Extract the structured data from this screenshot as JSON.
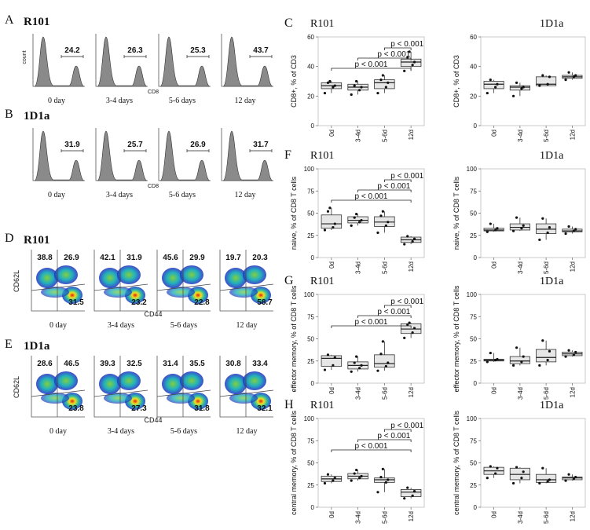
{
  "hist_panels": [
    {
      "letter": "A",
      "title": "R101",
      "y_label": "count",
      "x_label": "CD8",
      "samples": [
        {
          "label": "0 day",
          "value": 24.2
        },
        {
          "label": "3-4 days",
          "value": 26.3
        },
        {
          "label": "5-6 days",
          "value": 25.3
        },
        {
          "label": "12 day",
          "value": 43.7
        }
      ]
    },
    {
      "letter": "B",
      "title": "1D1a",
      "x_label": "CD8",
      "samples": [
        {
          "label": "0 day",
          "value": 31.9
        },
        {
          "label": "3-4 days",
          "value": 25.7
        },
        {
          "label": "5-6 days",
          "value": 26.9
        },
        {
          "label": "12 day",
          "value": 31.7
        }
      ]
    }
  ],
  "flow_panels": [
    {
      "letter": "D",
      "title": "R101",
      "y_label": "CD62L",
      "x_label": "CD44",
      "samples": [
        {
          "label": "0 day",
          "top_left": 38.8,
          "top_right": 26.9,
          "bottom_right": 31.5
        },
        {
          "label": "3-4 days",
          "top_left": 42.1,
          "top_right": 31.9,
          "bottom_right": 23.2
        },
        {
          "label": "5-6 days",
          "top_left": 45.6,
          "top_right": 29.9,
          "bottom_right": 22.8
        },
        {
          "label": "12 day",
          "top_left": 19.7,
          "top_right": 20.3,
          "bottom_right": 58.7
        }
      ]
    },
    {
      "letter": "E",
      "title": "1D1a",
      "y_label": "CD62L",
      "x_label": "CD44",
      "samples": [
        {
          "label": "0 day",
          "top_left": 28.6,
          "top_right": 46.5,
          "bottom_right": 23.8
        },
        {
          "label": "3-4 days",
          "top_left": 39.3,
          "top_right": 32.5,
          "bottom_right": 27.3
        },
        {
          "label": "5-6 days",
          "top_left": 31.4,
          "top_right": 35.5,
          "bottom_right": 31.8
        },
        {
          "label": "12 day",
          "top_left": 30.8,
          "top_right": 33.4,
          "bottom_right": 32.1
        }
      ]
    }
  ],
  "box_row_letters": [
    "C",
    "F",
    "G",
    "H"
  ],
  "chart_data": [
    {
      "type": "box",
      "title": "R101",
      "y_label": "CD8+, % of CD3",
      "categories": [
        "0d",
        "3-4d",
        "5-6d",
        "12d"
      ],
      "ylim": [
        0,
        60
      ],
      "yticks": [
        0,
        20,
        40,
        60
      ],
      "annotations": [
        "p < 0.001",
        "p < 0.001",
        "p < 0.001"
      ],
      "boxes": [
        {
          "low": 22,
          "q1": 25,
          "median": 27,
          "q3": 29,
          "high": 30,
          "points": [
            22,
            26,
            27,
            29,
            30
          ]
        },
        {
          "low": 21,
          "q1": 24,
          "median": 26,
          "q3": 28,
          "high": 30,
          "points": [
            21,
            24,
            26,
            27,
            30
          ]
        },
        {
          "low": 22,
          "q1": 25,
          "median": 29,
          "q3": 31,
          "high": 34,
          "points": [
            22,
            26,
            29,
            31,
            34
          ]
        },
        {
          "low": 37,
          "q1": 40,
          "median": 43,
          "q3": 45,
          "high": 50,
          "points": [
            37,
            41,
            43,
            46,
            50
          ]
        }
      ]
    },
    {
      "type": "box",
      "title": "1D1a",
      "y_label": "CD8+, % of CD3",
      "categories": [
        "0d",
        "3-4d",
        "5-6d",
        "12d"
      ],
      "ylim": [
        0,
        60
      ],
      "yticks": [
        0,
        20,
        40,
        60
      ],
      "boxes": [
        {
          "low": 22,
          "q1": 25,
          "median": 28,
          "q3": 30,
          "high": 31,
          "points": [
            22,
            26,
            28,
            31
          ]
        },
        {
          "low": 20,
          "q1": 24,
          "median": 26,
          "q3": 27,
          "high": 29,
          "points": [
            20,
            25,
            26,
            29
          ]
        },
        {
          "low": 27,
          "q1": 27,
          "median": 28,
          "q3": 33,
          "high": 34,
          "points": [
            27,
            28,
            33,
            34
          ]
        },
        {
          "low": 31,
          "q1": 32,
          "median": 33,
          "q3": 34,
          "high": 36,
          "points": [
            31,
            33,
            34,
            36
          ]
        }
      ]
    },
    {
      "type": "box",
      "title": "R101",
      "y_label": "naive, % of CD8 T cells",
      "categories": [
        "0d",
        "3-4d",
        "5-6d",
        "12d"
      ],
      "ylim": [
        0,
        100
      ],
      "yticks": [
        0,
        25,
        50,
        75,
        100
      ],
      "annotations": [
        "p < 0.001",
        "p < 0.001",
        "p < 0.001"
      ],
      "boxes": [
        {
          "low": 31,
          "q1": 33,
          "median": 38,
          "q3": 48,
          "high": 56,
          "points": [
            31,
            34,
            38,
            52,
            56
          ]
        },
        {
          "low": 36,
          "q1": 39,
          "median": 42,
          "q3": 46,
          "high": 49,
          "points": [
            36,
            40,
            42,
            45,
            49
          ]
        },
        {
          "low": 28,
          "q1": 35,
          "median": 40,
          "q3": 46,
          "high": 52,
          "points": [
            28,
            36,
            40,
            47,
            52
          ]
        },
        {
          "low": 15,
          "q1": 17,
          "median": 20,
          "q3": 23,
          "high": 24,
          "points": [
            15,
            18,
            21,
            24
          ]
        }
      ]
    },
    {
      "type": "box",
      "title": "1D1a",
      "y_label": "naive, % of CD8 T cells",
      "categories": [
        "0d",
        "3-4d",
        "5-6d",
        "12d"
      ],
      "ylim": [
        0,
        100
      ],
      "yticks": [
        0,
        25,
        50,
        75,
        100
      ],
      "boxes": [
        {
          "low": 29,
          "q1": 30,
          "median": 31,
          "q3": 33,
          "high": 38,
          "points": [
            29,
            31,
            33,
            38
          ]
        },
        {
          "low": 30,
          "q1": 31,
          "median": 34,
          "q3": 38,
          "high": 45,
          "points": [
            30,
            33,
            36,
            45
          ]
        },
        {
          "low": 20,
          "q1": 27,
          "median": 32,
          "q3": 38,
          "high": 44,
          "points": [
            20,
            28,
            34,
            44
          ]
        },
        {
          "low": 27,
          "q1": 29,
          "median": 30,
          "q3": 32,
          "high": 35,
          "points": [
            27,
            30,
            32,
            35
          ]
        }
      ]
    },
    {
      "type": "box",
      "title": "R101",
      "y_label": "effector memory, % of CD8 T cells",
      "categories": [
        "0d",
        "3-4d",
        "5-6d",
        "12d"
      ],
      "ylim": [
        0,
        100
      ],
      "yticks": [
        0,
        25,
        50,
        75,
        100
      ],
      "annotations": [
        "p < 0.001",
        "p < 0.001",
        "p < 0.001"
      ],
      "boxes": [
        {
          "low": 15,
          "q1": 19,
          "median": 28,
          "q3": 31,
          "high": 32,
          "points": [
            15,
            20,
            29,
            32
          ]
        },
        {
          "low": 13,
          "q1": 16,
          "median": 20,
          "q3": 24,
          "high": 30,
          "points": [
            13,
            17,
            20,
            23,
            30
          ]
        },
        {
          "low": 14,
          "q1": 18,
          "median": 22,
          "q3": 32,
          "high": 47,
          "points": [
            14,
            19,
            23,
            33,
            47
          ]
        },
        {
          "low": 51,
          "q1": 56,
          "median": 61,
          "q3": 67,
          "high": 68,
          "points": [
            51,
            57,
            62,
            66,
            68
          ]
        }
      ]
    },
    {
      "type": "box",
      "title": "1D1a",
      "y_label": "effector memory, % of CD8 T cells",
      "categories": [
        "0d",
        "3-4d",
        "5-6d",
        "12d"
      ],
      "ylim": [
        0,
        100
      ],
      "yticks": [
        0,
        25,
        50,
        75,
        100
      ],
      "boxes": [
        {
          "low": 24,
          "q1": 25,
          "median": 26,
          "q3": 27,
          "high": 34,
          "points": [
            24,
            26,
            27,
            34
          ]
        },
        {
          "low": 20,
          "q1": 22,
          "median": 25,
          "q3": 30,
          "high": 40,
          "points": [
            20,
            24,
            30,
            40
          ]
        },
        {
          "low": 20,
          "q1": 24,
          "median": 29,
          "q3": 38,
          "high": 48,
          "points": [
            20,
            26,
            36,
            48
          ]
        },
        {
          "low": 30,
          "q1": 31,
          "median": 33,
          "q3": 35,
          "high": 37,
          "points": [
            30,
            32,
            35,
            37
          ]
        }
      ]
    },
    {
      "type": "box",
      "title": "R101",
      "y_label": "central memory, % of CD8 T cells",
      "categories": [
        "0d",
        "3-4d",
        "5-6d",
        "12d"
      ],
      "ylim": [
        0,
        100
      ],
      "yticks": [
        0,
        25,
        50,
        75,
        100
      ],
      "annotations": [
        "p < 0.001",
        "p < 0.001",
        "p < 0.001"
      ],
      "boxes": [
        {
          "low": 27,
          "q1": 29,
          "median": 32,
          "q3": 35,
          "high": 37,
          "points": [
            27,
            30,
            33,
            37
          ]
        },
        {
          "low": 30,
          "q1": 32,
          "median": 35,
          "q3": 38,
          "high": 42,
          "points": [
            30,
            33,
            35,
            38,
            42
          ]
        },
        {
          "low": 17,
          "q1": 28,
          "median": 31,
          "q3": 33,
          "high": 43,
          "points": [
            17,
            28,
            31,
            34,
            43
          ]
        },
        {
          "low": 10,
          "q1": 12,
          "median": 17,
          "q3": 20,
          "high": 22,
          "points": [
            10,
            13,
            18,
            22
          ]
        }
      ]
    },
    {
      "type": "box",
      "title": "1D1a",
      "y_label": "central memory, % of CD8 T cells",
      "categories": [
        "0d",
        "3-4d",
        "5-6d",
        "12d"
      ],
      "ylim": [
        0,
        100
      ],
      "yticks": [
        0,
        25,
        50,
        75,
        100
      ],
      "boxes": [
        {
          "low": 33,
          "q1": 37,
          "median": 41,
          "q3": 45,
          "high": 46,
          "points": [
            33,
            38,
            44,
            46
          ]
        },
        {
          "low": 27,
          "q1": 31,
          "median": 37,
          "q3": 44,
          "high": 45,
          "points": [
            27,
            33,
            40,
            45
          ]
        },
        {
          "low": 27,
          "q1": 28,
          "median": 31,
          "q3": 37,
          "high": 44,
          "points": [
            27,
            29,
            31,
            44
          ]
        },
        {
          "low": 30,
          "q1": 31,
          "median": 33,
          "q3": 34,
          "high": 37,
          "points": [
            30,
            32,
            34,
            37
          ]
        }
      ]
    }
  ]
}
